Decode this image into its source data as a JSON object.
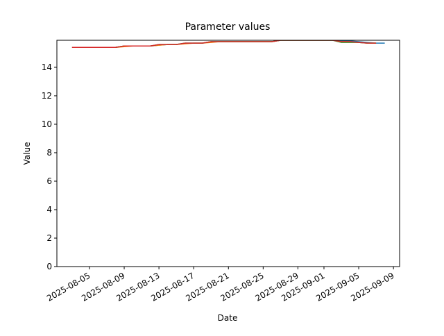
{
  "chart_data": {
    "type": "line",
    "title": "Parameter values",
    "x_label": "Date",
    "y_label": "Value",
    "x": [
      "2025-08-03",
      "2025-08-04",
      "2025-08-05",
      "2025-08-06",
      "2025-08-07",
      "2025-08-08",
      "2025-08-09",
      "2025-08-10",
      "2025-08-11",
      "2025-08-12",
      "2025-08-13",
      "2025-08-14",
      "2025-08-15",
      "2025-08-16",
      "2025-08-17",
      "2025-08-18",
      "2025-08-19",
      "2025-08-20",
      "2025-08-21",
      "2025-08-22",
      "2025-08-23",
      "2025-08-24",
      "2025-08-25",
      "2025-08-26",
      "2025-08-27",
      "2025-08-28",
      "2025-08-29",
      "2025-08-30",
      "2025-08-31",
      "2025-09-01",
      "2025-09-02",
      "2025-09-03",
      "2025-09-04",
      "2025-09-05",
      "2025-09-06",
      "2025-09-07",
      "2025-09-08"
    ],
    "series": [
      {
        "color": "#1f77b4",
        "values": [
          15.4,
          15.4,
          15.4,
          15.4,
          15.4,
          15.4,
          15.5,
          15.5,
          15.5,
          15.5,
          15.55,
          15.6,
          15.6,
          15.7,
          15.7,
          15.7,
          15.8,
          15.8,
          15.8,
          15.8,
          15.8,
          15.8,
          15.8,
          15.8,
          15.9,
          15.9,
          15.9,
          15.9,
          15.9,
          15.9,
          15.9,
          15.85,
          15.85,
          15.8,
          15.75,
          15.7,
          15.7
        ]
      },
      {
        "color": "#ff7f0e",
        "values": [
          15.4,
          15.4,
          15.4,
          15.4,
          15.4,
          15.4,
          15.45,
          15.5,
          15.5,
          15.5,
          15.55,
          15.6,
          15.6,
          15.65,
          15.7,
          15.7,
          15.75,
          15.8,
          15.8,
          15.8,
          15.8,
          15.8,
          15.8,
          15.8,
          15.9,
          15.9,
          15.9,
          15.9,
          15.9,
          15.9,
          15.9,
          15.8,
          15.8,
          15.75,
          15.7,
          15.7,
          null
        ]
      },
      {
        "color": "#2ca02c",
        "values": [
          15.4,
          15.4,
          15.4,
          15.4,
          15.4,
          15.4,
          15.5,
          15.5,
          15.5,
          15.5,
          15.6,
          15.6,
          15.6,
          15.7,
          15.7,
          15.7,
          15.8,
          15.8,
          15.8,
          15.8,
          15.8,
          15.8,
          15.8,
          15.8,
          15.9,
          15.9,
          15.9,
          15.9,
          15.9,
          15.9,
          15.9,
          15.75,
          15.75,
          15.75,
          15.7,
          15.7,
          null
        ]
      },
      {
        "color": "#d62728",
        "values": [
          15.4,
          15.4,
          15.4,
          15.4,
          15.4,
          15.4,
          15.5,
          15.5,
          15.5,
          15.5,
          15.6,
          15.6,
          15.6,
          15.7,
          15.7,
          15.7,
          15.8,
          15.8,
          15.8,
          15.8,
          15.8,
          15.8,
          15.8,
          15.8,
          15.9,
          15.9,
          15.9,
          15.9,
          15.9,
          15.9,
          15.9,
          15.8,
          15.8,
          15.75,
          15.7,
          15.7,
          null
        ]
      }
    ],
    "xlim": [
      "2025-08-01T06:00",
      "2025-09-09T17:00"
    ],
    "xticks": [
      "2025-08-05",
      "2025-08-09",
      "2025-08-13",
      "2025-08-17",
      "2025-08-21",
      "2025-08-25",
      "2025-08-29",
      "2025-09-01",
      "2025-09-05",
      "2025-09-09"
    ],
    "ylim": [
      0,
      15.9
    ],
    "yticks": [
      0,
      2,
      4,
      6,
      8,
      10,
      12,
      14
    ]
  }
}
